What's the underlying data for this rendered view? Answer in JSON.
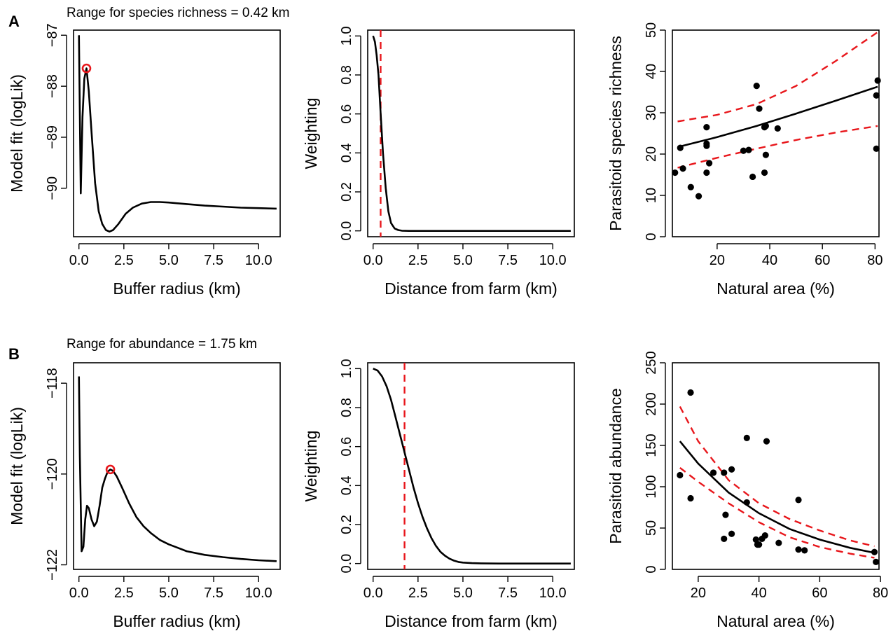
{
  "panels": [
    {
      "letter": "A",
      "range_text": "Range for species richness = 0.42 km"
    },
    {
      "letter": "B",
      "range_text": "Range for abundance = 1.75 km"
    }
  ],
  "chart_data": [
    {
      "id": "A-fit",
      "type": "line",
      "xlabel": "Buffer radius (km)",
      "ylabel": "Model fit (logLik)",
      "xlim": [
        -0.3,
        11.2
      ],
      "ylim": [
        -90.95,
        -86.9
      ],
      "xticks": [
        0,
        2.5,
        5,
        7.5,
        10
      ],
      "xtick_labels": [
        "0.0",
        "2.5",
        "5.0",
        "7.5",
        "10.0"
      ],
      "yticks": [
        -90,
        -89,
        -88,
        -87
      ],
      "ytick_labels": [
        "−90",
        "−89",
        "−88",
        "−87"
      ],
      "line_color": "#000000",
      "highlight_color": "#e8161b",
      "series": [
        {
          "x": [
            0,
            0.1,
            0.2,
            0.3,
            0.42,
            0.55,
            0.7,
            0.9,
            1.1,
            1.3,
            1.5,
            1.7,
            1.9,
            2.2,
            2.6,
            3.0,
            3.5,
            4.0,
            4.5,
            5.0,
            6.0,
            7.0,
            8.0,
            9.0,
            10.0,
            11.0
          ],
          "y": [
            -87.0,
            -90.1,
            -88.6,
            -87.85,
            -87.65,
            -88.1,
            -88.9,
            -89.9,
            -90.45,
            -90.7,
            -90.82,
            -90.85,
            -90.82,
            -90.7,
            -90.5,
            -90.38,
            -90.3,
            -90.27,
            -90.27,
            -90.28,
            -90.31,
            -90.34,
            -90.36,
            -90.38,
            -90.39,
            -90.4
          ]
        }
      ],
      "highlight": {
        "x": 0.42,
        "y": -87.65
      }
    },
    {
      "id": "A-weight",
      "type": "line",
      "xlabel": "Distance from farm (km)",
      "ylabel": "Weighting",
      "xlim": [
        -0.3,
        11.2
      ],
      "ylim": [
        -0.03,
        1.03
      ],
      "xticks": [
        0,
        2.5,
        5,
        7.5,
        10
      ],
      "xtick_labels": [
        "0.0",
        "2.5",
        "5.0",
        "7.5",
        "10.0"
      ],
      "yticks": [
        0,
        0.2,
        0.4,
        0.6,
        0.8,
        1.0
      ],
      "ytick_labels": [
        "0.0",
        "0.2",
        "0.4",
        "0.6",
        "0.8",
        "1.0"
      ],
      "line_color": "#000000",
      "ref_line_color": "#e8161b",
      "series": [
        {
          "x": [
            0,
            0.1,
            0.2,
            0.3,
            0.42,
            0.55,
            0.7,
            0.85,
            1.0,
            1.2,
            1.4,
            1.6,
            2.0,
            3.0,
            5.0,
            8.0,
            11.0
          ],
          "y": [
            1.0,
            0.97,
            0.9,
            0.8,
            0.6,
            0.4,
            0.22,
            0.1,
            0.04,
            0.012,
            0.004,
            0.001,
            0,
            0,
            0,
            0,
            0
          ]
        }
      ],
      "vline_x": 0.42
    },
    {
      "id": "A-scatter",
      "type": "scatter",
      "xlabel": "Natural area (%)",
      "ylabel": "Parasitoid species richness",
      "xlim": [
        3,
        81.5
      ],
      "ylim": [
        0,
        50
      ],
      "xticks": [
        20,
        40,
        60,
        80
      ],
      "xtick_labels": [
        "20",
        "40",
        "60",
        "80"
      ],
      "yticks": [
        0,
        10,
        20,
        30,
        40,
        50
      ],
      "ytick_labels": [
        "0",
        "10",
        "20",
        "30",
        "40",
        "50"
      ],
      "point_color": "#000000",
      "fit_color": "#000000",
      "ci_color": "#e8161b",
      "points": {
        "x": [
          4,
          6,
          7,
          10,
          13,
          16,
          16,
          16,
          16,
          17,
          30,
          32,
          33.5,
          35,
          36,
          38,
          38,
          38.5,
          38.5,
          43,
          80.5,
          80.5,
          81
        ],
        "y": [
          15.5,
          21.5,
          16.5,
          12,
          9.8,
          22,
          22.5,
          15.5,
          26.5,
          17.8,
          20.8,
          21,
          14.5,
          36.5,
          31,
          15.5,
          26.5,
          19.8,
          26.8,
          26.2,
          34.2,
          21.3,
          37.8
        ]
      },
      "fit": {
        "x": [
          5,
          20,
          35,
          50,
          65,
          81
        ],
        "y": [
          21.7,
          24.1,
          26.8,
          29.8,
          32.9,
          36.3
        ]
      },
      "ci_upper": {
        "x": [
          5,
          20,
          35,
          50,
          65,
          81
        ],
        "y": [
          27.9,
          29.5,
          32.1,
          36.5,
          42.5,
          49.5
        ]
      },
      "ci_lower": {
        "x": [
          5,
          20,
          35,
          50,
          65,
          81
        ],
        "y": [
          16.7,
          19.1,
          21.3,
          23.4,
          25.2,
          26.8
        ]
      }
    },
    {
      "id": "B-fit",
      "type": "line",
      "xlabel": "Buffer radius (km)",
      "ylabel": "Model fit (logLik)",
      "xlim": [
        -0.3,
        11.2
      ],
      "ylim": [
        -122.1,
        -117.55
      ],
      "xticks": [
        0,
        2.5,
        5,
        7.5,
        10
      ],
      "xtick_labels": [
        "0.0",
        "2.5",
        "5.0",
        "7.5",
        "10.0"
      ],
      "yticks": [
        -122,
        -120,
        -118
      ],
      "ytick_labels": [
        "−122",
        "−120",
        "−118"
      ],
      "line_color": "#000000",
      "highlight_color": "#e8161b",
      "series": [
        {
          "x": [
            0,
            0.05,
            0.15,
            0.25,
            0.35,
            0.45,
            0.55,
            0.7,
            0.85,
            1.0,
            1.15,
            1.3,
            1.45,
            1.6,
            1.75,
            1.9,
            2.1,
            2.4,
            2.8,
            3.2,
            3.6,
            4.0,
            4.5,
            5.0,
            6.0,
            7.0,
            8.0,
            9.0,
            10.0,
            11.0
          ],
          "y": [
            -117.85,
            -119.6,
            -121.7,
            -121.6,
            -121.0,
            -120.7,
            -120.75,
            -121.0,
            -121.15,
            -121.05,
            -120.7,
            -120.3,
            -120.1,
            -119.95,
            -119.9,
            -119.93,
            -120.05,
            -120.3,
            -120.65,
            -120.95,
            -121.15,
            -121.3,
            -121.45,
            -121.55,
            -121.7,
            -121.78,
            -121.83,
            -121.87,
            -121.9,
            -121.92
          ]
        }
      ],
      "highlight": {
        "x": 1.75,
        "y": -119.9
      }
    },
    {
      "id": "B-weight",
      "type": "line",
      "xlabel": "Distance from farm (km)",
      "ylabel": "Weighting",
      "xlim": [
        -0.3,
        11.2
      ],
      "ylim": [
        -0.03,
        1.03
      ],
      "xticks": [
        0,
        2.5,
        5,
        7.5,
        10
      ],
      "xtick_labels": [
        "0.0",
        "2.5",
        "5.0",
        "7.5",
        "10.0"
      ],
      "yticks": [
        0,
        0.2,
        0.4,
        0.6,
        0.8,
        1.0
      ],
      "ytick_labels": [
        "0.0",
        "0.2",
        "0.4",
        "0.6",
        "0.8",
        "1.0"
      ],
      "line_color": "#000000",
      "ref_line_color": "#e8161b",
      "series": [
        {
          "x": [
            0,
            0.25,
            0.5,
            0.75,
            1.0,
            1.25,
            1.5,
            1.75,
            2.0,
            2.25,
            2.5,
            2.75,
            3.0,
            3.25,
            3.5,
            3.75,
            4.0,
            4.25,
            4.5,
            4.75,
            5.0,
            5.5,
            6.0,
            7.0,
            8.0,
            9.0,
            10.0,
            11.0
          ],
          "y": [
            1.0,
            0.99,
            0.96,
            0.91,
            0.84,
            0.75,
            0.66,
            0.57,
            0.48,
            0.39,
            0.31,
            0.24,
            0.18,
            0.13,
            0.09,
            0.06,
            0.04,
            0.025,
            0.015,
            0.008,
            0.005,
            0.002,
            0.001,
            0,
            0,
            0,
            0,
            0
          ]
        }
      ],
      "vline_x": 1.75
    },
    {
      "id": "B-scatter",
      "type": "scatter",
      "xlabel": "Natural area (%)",
      "ylabel": "Parasitoid abundance",
      "xlim": [
        11.5,
        79.5
      ],
      "ylim": [
        0,
        250
      ],
      "xticks": [
        20,
        40,
        60,
        80
      ],
      "xtick_labels": [
        "20",
        "40",
        "60",
        "80"
      ],
      "yticks": [
        0,
        50,
        100,
        150,
        200,
        250
      ],
      "ytick_labels": [
        "0",
        "50",
        "100",
        "150",
        "200",
        "250"
      ],
      "point_color": "#000000",
      "fit_color": "#000000",
      "ci_color": "#e8161b",
      "points": {
        "x": [
          14,
          17.5,
          17.5,
          25,
          28.5,
          28.5,
          29,
          31,
          31,
          36,
          36,
          39,
          39.5,
          40,
          41,
          42,
          42.5,
          46.5,
          53,
          53,
          55,
          78,
          78.5
        ],
        "y": [
          114,
          214,
          86,
          117,
          117,
          37,
          66,
          121,
          43,
          159,
          81,
          36,
          30,
          30,
          37,
          41,
          155,
          32,
          84,
          24,
          23,
          21,
          9
        ]
      },
      "fit": {
        "x": [
          14,
          20,
          30,
          40,
          50,
          60,
          70,
          78
        ],
        "y": [
          155,
          128,
          93,
          68,
          49,
          36,
          26,
          20
        ]
      },
      "ci_upper": {
        "x": [
          14,
          20,
          30,
          40,
          50,
          60,
          70,
          78
        ],
        "y": [
          197,
          155,
          108,
          80,
          61,
          47,
          35,
          28
        ]
      },
      "ci_lower": {
        "x": [
          14,
          20,
          30,
          40,
          50,
          60,
          70,
          78
        ],
        "y": [
          123,
          106,
          80,
          57,
          39,
          27,
          19,
          14
        ]
      }
    }
  ]
}
